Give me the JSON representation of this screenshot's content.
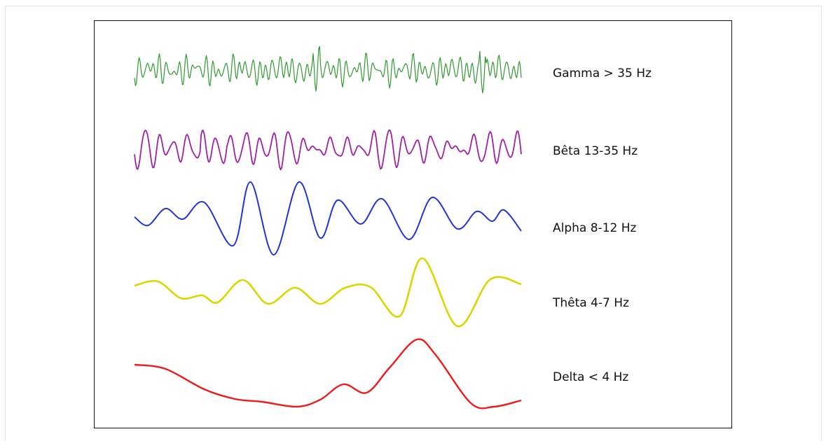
{
  "bands": [
    {
      "label": "Gamma > 35 Hz",
      "color": "#2f9a2f"
    },
    {
      "label": "Bêta 13-35 Hz",
      "color": "#a020a8"
    },
    {
      "label": "Alpha 8-12 Hz",
      "color": "#2233dd"
    },
    {
      "label": "Thêta 4-7 Hz",
      "color": "#d8d800"
    },
    {
      "label": "Delta < 4 Hz",
      "color": "#ee1b1b"
    }
  ]
}
